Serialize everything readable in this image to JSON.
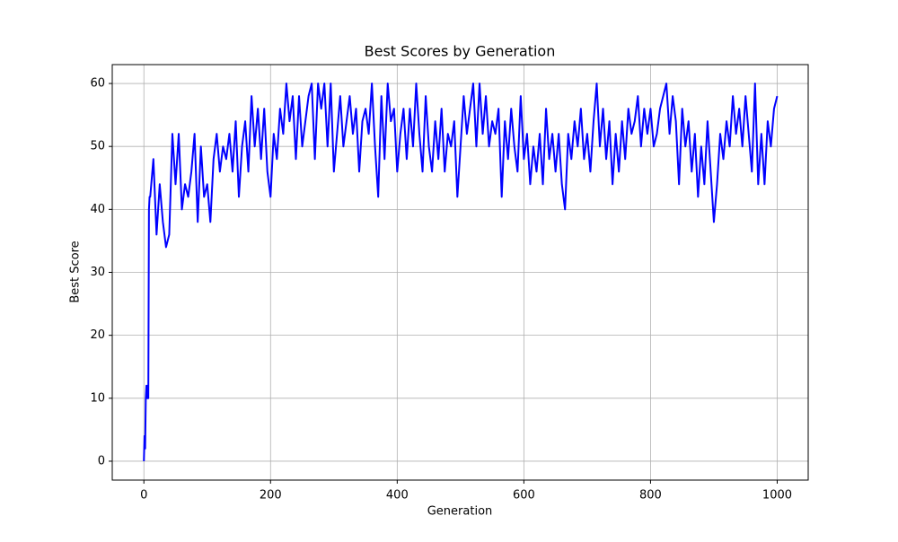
{
  "chart_data": {
    "type": "line",
    "title": "Best Scores by Generation",
    "x_label": "Generation",
    "y_label": "Best Score",
    "color": "#0000ff",
    "grid": true,
    "xlim": [
      -49.95,
      1048.95
    ],
    "ylim": [
      -3,
      63
    ],
    "xticks": [
      0,
      200,
      400,
      600,
      800,
      1000
    ],
    "yticks": [
      0,
      10,
      20,
      30,
      40,
      50,
      60
    ],
    "x": [
      0,
      1,
      2,
      3,
      4,
      5,
      6,
      7,
      8,
      9,
      10,
      15,
      20,
      25,
      30,
      35,
      40,
      45,
      50,
      55,
      60,
      65,
      70,
      75,
      80,
      85,
      90,
      95,
      100,
      105,
      110,
      115,
      120,
      125,
      130,
      135,
      140,
      145,
      150,
      155,
      160,
      165,
      170,
      175,
      180,
      185,
      190,
      195,
      200,
      205,
      210,
      215,
      220,
      225,
      230,
      235,
      240,
      245,
      250,
      255,
      260,
      265,
      270,
      275,
      280,
      285,
      290,
      295,
      300,
      305,
      310,
      315,
      320,
      325,
      330,
      335,
      340,
      345,
      350,
      355,
      360,
      365,
      370,
      375,
      380,
      385,
      390,
      395,
      400,
      405,
      410,
      415,
      420,
      425,
      430,
      435,
      440,
      445,
      450,
      455,
      460,
      465,
      470,
      475,
      480,
      485,
      490,
      495,
      500,
      505,
      510,
      515,
      520,
      525,
      530,
      535,
      540,
      545,
      550,
      555,
      560,
      565,
      570,
      575,
      580,
      585,
      590,
      595,
      600,
      605,
      610,
      615,
      620,
      625,
      630,
      635,
      640,
      645,
      650,
      655,
      660,
      665,
      670,
      675,
      680,
      685,
      690,
      695,
      700,
      705,
      710,
      715,
      720,
      725,
      730,
      735,
      740,
      745,
      750,
      755,
      760,
      765,
      770,
      775,
      780,
      785,
      790,
      795,
      800,
      805,
      810,
      815,
      820,
      825,
      830,
      835,
      840,
      845,
      850,
      855,
      860,
      865,
      870,
      875,
      880,
      885,
      890,
      895,
      900,
      905,
      910,
      915,
      920,
      925,
      930,
      935,
      940,
      945,
      950,
      955,
      960,
      965,
      970,
      975,
      980,
      985,
      990,
      995,
      1000
    ],
    "values": [
      0,
      4,
      2,
      10,
      12,
      10,
      12,
      10,
      40,
      42,
      42,
      48,
      36,
      44,
      38,
      34,
      36,
      52,
      44,
      52,
      40,
      44,
      42,
      46,
      52,
      38,
      50,
      42,
      44,
      38,
      48,
      52,
      46,
      50,
      48,
      52,
      46,
      54,
      42,
      50,
      54,
      46,
      58,
      50,
      56,
      48,
      56,
      46,
      42,
      52,
      48,
      56,
      52,
      60,
      54,
      58,
      48,
      58,
      50,
      54,
      58,
      60,
      48,
      60,
      56,
      60,
      50,
      60,
      46,
      52,
      58,
      50,
      54,
      58,
      52,
      56,
      46,
      54,
      56,
      52,
      60,
      50,
      42,
      58,
      48,
      60,
      54,
      56,
      46,
      52,
      56,
      48,
      56,
      50,
      60,
      52,
      46,
      58,
      50,
      46,
      54,
      48,
      56,
      46,
      52,
      50,
      54,
      42,
      50,
      58,
      52,
      56,
      60,
      50,
      60,
      52,
      58,
      50,
      54,
      52,
      56,
      42,
      54,
      48,
      56,
      50,
      46,
      58,
      48,
      52,
      44,
      50,
      46,
      52,
      44,
      56,
      48,
      52,
      46,
      52,
      44,
      40,
      52,
      48,
      54,
      50,
      56,
      48,
      52,
      46,
      54,
      60,
      50,
      56,
      48,
      54,
      44,
      52,
      46,
      54,
      48,
      56,
      52,
      54,
      58,
      50,
      56,
      52,
      56,
      50,
      52,
      56,
      58,
      60,
      52,
      58,
      54,
      44,
      56,
      50,
      54,
      46,
      52,
      42,
      50,
      44,
      54,
      46,
      38,
      44,
      52,
      48,
      54,
      50,
      58,
      52,
      56,
      50,
      58,
      52,
      46,
      60,
      44,
      52,
      44,
      54,
      50,
      56,
      58
    ]
  }
}
